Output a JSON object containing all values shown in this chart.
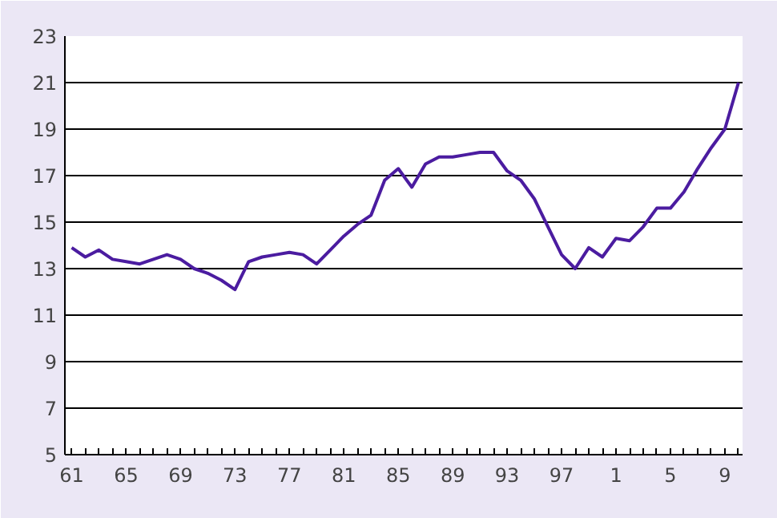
{
  "chart_data": {
    "type": "line",
    "categories": [
      "61",
      null,
      null,
      null,
      "65",
      null,
      null,
      null,
      "69",
      null,
      null,
      null,
      "73",
      null,
      null,
      null,
      "77",
      null,
      null,
      null,
      "81",
      null,
      null,
      null,
      "85",
      null,
      null,
      null,
      "89",
      null,
      null,
      null,
      "93",
      null,
      null,
      null,
      "97",
      null,
      null,
      null,
      "1",
      null,
      null,
      null,
      "5",
      null,
      null,
      null,
      "9",
      null
    ],
    "series": [
      {
        "color": "#4b1ca0",
        "values": [
          13.9,
          13.5,
          13.8,
          13.4,
          13.3,
          13.2,
          13.4,
          13.6,
          13.4,
          13.0,
          12.8,
          12.5,
          12.1,
          13.3,
          13.5,
          13.6,
          13.7,
          13.6,
          13.2,
          13.8,
          14.4,
          14.9,
          15.3,
          16.8,
          17.3,
          16.5,
          17.5,
          17.8,
          17.8,
          17.9,
          18.0,
          18.0,
          17.2,
          16.8,
          16.0,
          14.8,
          13.6,
          13.0,
          13.9,
          13.5,
          14.3,
          14.2,
          14.8,
          15.6,
          15.6,
          16.3,
          17.3,
          18.2,
          19.0,
          21.0
        ]
      }
    ],
    "ylim": [
      5,
      23
    ],
    "yticks": [
      5,
      7,
      9,
      11,
      13,
      15,
      17,
      19,
      21,
      23
    ],
    "grid": "y",
    "marker": "none",
    "line_style": "solid"
  }
}
